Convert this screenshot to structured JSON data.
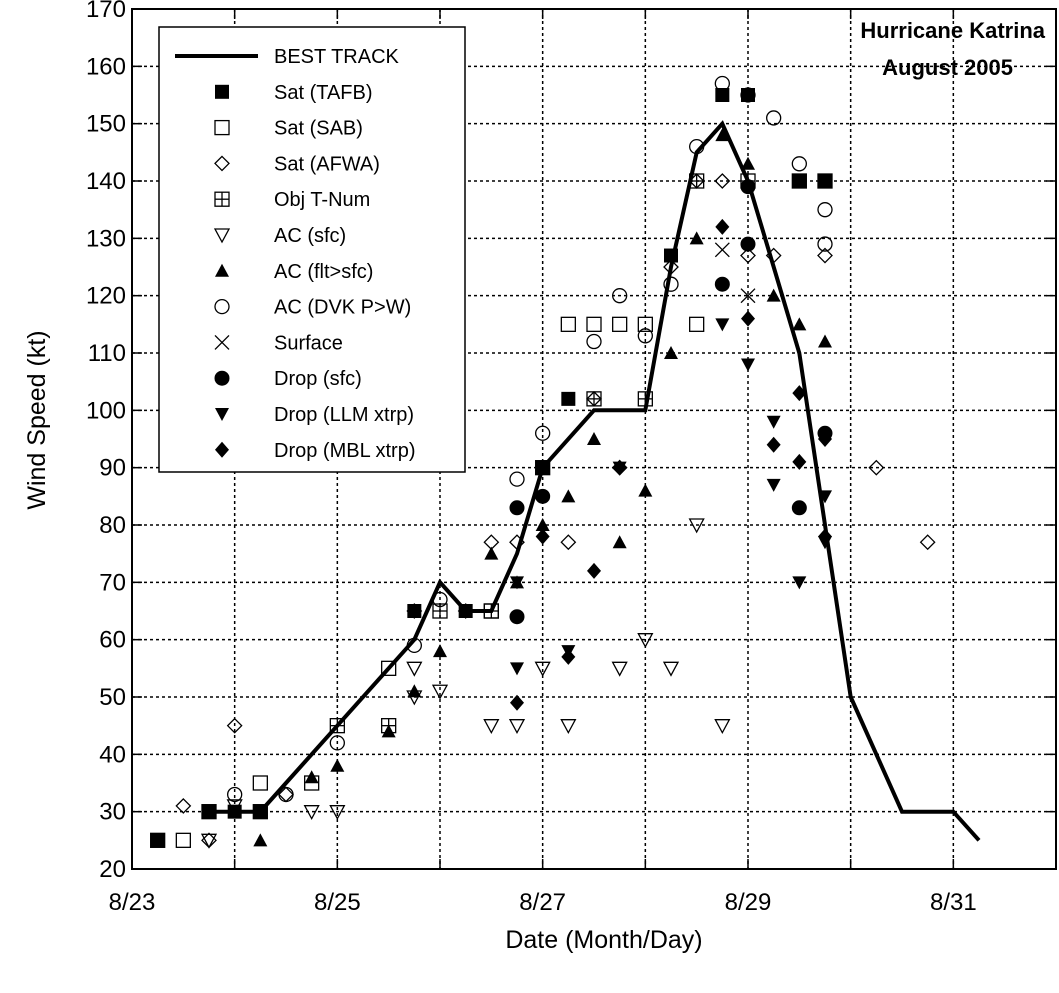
{
  "chart_data": {
    "type": "scatter",
    "title": [
      "Hurricane Katrina",
      "August 2005"
    ],
    "xlabel": "Date (Month/Day)",
    "ylabel": "Wind Speed (kt)",
    "xlim": [
      "8/23 00:00",
      "8/31 24:00"
    ],
    "ylim": [
      20,
      170
    ],
    "x_ticks": [
      "8/23",
      "8/25",
      "8/27",
      "8/29",
      "8/31"
    ],
    "y_ticks": [
      20,
      30,
      40,
      50,
      60,
      70,
      80,
      90,
      100,
      110,
      120,
      130,
      140,
      150,
      160,
      170
    ],
    "grid": true,
    "legend_position": "top-left",
    "series": [
      {
        "name": "BEST TRACK",
        "marker": "line",
        "points": [
          [
            "8/23 18:00",
            30
          ],
          [
            "8/24 06:00",
            30
          ],
          [
            "8/24 12:00",
            35
          ],
          [
            "8/25 00:00",
            45
          ],
          [
            "8/25 12:00",
            55
          ],
          [
            "8/25 18:00",
            60
          ],
          [
            "8/26 00:00",
            70
          ],
          [
            "8/26 06:00",
            65
          ],
          [
            "8/26 12:00",
            65
          ],
          [
            "8/26 18:00",
            75
          ],
          [
            "8/27 00:00",
            90
          ],
          [
            "8/27 12:00",
            100
          ],
          [
            "8/27 18:00",
            100
          ],
          [
            "8/28 00:00",
            100
          ],
          [
            "8/28 06:00",
            125
          ],
          [
            "8/28 12:00",
            145
          ],
          [
            "8/28 18:00",
            150
          ],
          [
            "8/29 00:00",
            140
          ],
          [
            "8/29 06:00",
            125
          ],
          [
            "8/29 12:00",
            110
          ],
          [
            "8/30 00:00",
            50
          ],
          [
            "8/30 12:00",
            30
          ],
          [
            "8/31 00:00",
            30
          ],
          [
            "8/31 06:00",
            25
          ]
        ]
      },
      {
        "name": "Sat (TAFB)",
        "marker": "square-filled",
        "points": [
          [
            "8/23 06:00",
            25
          ],
          [
            "8/23 18:00",
            30
          ],
          [
            "8/24 00:00",
            30
          ],
          [
            "8/24 06:00",
            30
          ],
          [
            "8/25 18:00",
            65
          ],
          [
            "8/26 06:00",
            65
          ],
          [
            "8/27 00:00",
            90
          ],
          [
            "8/27 06:00",
            102
          ],
          [
            "8/28 06:00",
            127
          ],
          [
            "8/28 18:00",
            155
          ],
          [
            "8/29 00:00",
            155
          ],
          [
            "8/29 12:00",
            140
          ],
          [
            "8/29 18:00",
            140
          ]
        ]
      },
      {
        "name": "Sat (SAB)",
        "marker": "square-open",
        "points": [
          [
            "8/23 06:00",
            25
          ],
          [
            "8/23 12:00",
            25
          ],
          [
            "8/24 06:00",
            35
          ],
          [
            "8/24 18:00",
            35
          ],
          [
            "8/25 12:00",
            55
          ],
          [
            "8/26 12:00",
            65
          ],
          [
            "8/27 06:00",
            115
          ],
          [
            "8/27 12:00",
            115
          ],
          [
            "8/27 18:00",
            115
          ],
          [
            "8/28 00:00",
            115
          ],
          [
            "8/28 12:00",
            115
          ]
        ]
      },
      {
        "name": "Sat (AFWA)",
        "marker": "diamond-open",
        "points": [
          [
            "8/23 12:00",
            31
          ],
          [
            "8/23 18:00",
            25
          ],
          [
            "8/24 00:00",
            45
          ],
          [
            "8/24 12:00",
            33
          ],
          [
            "8/25 18:00",
            65
          ],
          [
            "8/26 06:00",
            65
          ],
          [
            "8/26 12:00",
            77
          ],
          [
            "8/26 18:00",
            77
          ],
          [
            "8/27 06:00",
            77
          ],
          [
            "8/27 12:00",
            102
          ],
          [
            "8/27 18:00",
            90
          ],
          [
            "8/28 06:00",
            125
          ],
          [
            "8/28 12:00",
            140
          ],
          [
            "8/28 18:00",
            140
          ],
          [
            "8/29 00:00",
            127
          ],
          [
            "8/29 06:00",
            127
          ],
          [
            "8/29 18:00",
            127
          ],
          [
            "8/30 06:00",
            90
          ],
          [
            "8/30 18:00",
            77
          ]
        ]
      },
      {
        "name": "Obj T-Num",
        "marker": "square-plus",
        "points": [
          [
            "8/23 18:00",
            30
          ],
          [
            "8/24 06:00",
            30
          ],
          [
            "8/25 00:00",
            45
          ],
          [
            "8/25 12:00",
            45
          ],
          [
            "8/26 00:00",
            65
          ],
          [
            "8/26 12:00",
            65
          ],
          [
            "8/27 00:00",
            90
          ],
          [
            "8/27 12:00",
            102
          ],
          [
            "8/28 00:00",
            102
          ],
          [
            "8/28 12:00",
            140
          ],
          [
            "8/29 00:00",
            140
          ],
          [
            "8/29 12:00",
            140
          ],
          [
            "8/29 18:00",
            140
          ]
        ]
      },
      {
        "name": "AC (sfc)",
        "marker": "triangle-down-open",
        "points": [
          [
            "8/23 18:00",
            25
          ],
          [
            "8/24 00:00",
            31
          ],
          [
            "8/24 18:00",
            30
          ],
          [
            "8/25 00:00",
            30
          ],
          [
            "8/25 18:00",
            55
          ],
          [
            "8/25 18:00",
            50
          ],
          [
            "8/26 00:00",
            51
          ],
          [
            "8/26 12:00",
            45
          ],
          [
            "8/26 18:00",
            45
          ],
          [
            "8/27 00:00",
            55
          ],
          [
            "8/27 06:00",
            45
          ],
          [
            "8/27 18:00",
            55
          ],
          [
            "8/28 00:00",
            60
          ],
          [
            "8/28 06:00",
            55
          ],
          [
            "8/28 12:00",
            80
          ],
          [
            "8/28 18:00",
            45
          ]
        ]
      },
      {
        "name": "AC (flt>sfc)",
        "marker": "triangle-up-filled",
        "points": [
          [
            "8/24 06:00",
            25
          ],
          [
            "8/24 18:00",
            36
          ],
          [
            "8/25 00:00",
            38
          ],
          [
            "8/25 12:00",
            44
          ],
          [
            "8/25 18:00",
            51
          ],
          [
            "8/26 00:00",
            58
          ],
          [
            "8/26 12:00",
            75
          ],
          [
            "8/26 18:00",
            70
          ],
          [
            "8/27 00:00",
            80
          ],
          [
            "8/27 06:00",
            85
          ],
          [
            "8/27 12:00",
            95
          ],
          [
            "8/27 18:00",
            77
          ],
          [
            "8/28 00:00",
            86
          ],
          [
            "8/28 06:00",
            110
          ],
          [
            "8/28 12:00",
            130
          ],
          [
            "8/28 18:00",
            148
          ],
          [
            "8/29 00:00",
            143
          ],
          [
            "8/29 06:00",
            120
          ],
          [
            "8/29 12:00",
            115
          ],
          [
            "8/29 18:00",
            112
          ]
        ]
      },
      {
        "name": "AC (DVK P>W)",
        "marker": "circle-open",
        "points": [
          [
            "8/24 00:00",
            33
          ],
          [
            "8/24 12:00",
            33
          ],
          [
            "8/25 00:00",
            42
          ],
          [
            "8/25 18:00",
            59
          ],
          [
            "8/26 00:00",
            67
          ],
          [
            "8/26 18:00",
            88
          ],
          [
            "8/27 00:00",
            96
          ],
          [
            "8/27 12:00",
            112
          ],
          [
            "8/27 18:00",
            120
          ],
          [
            "8/28 00:00",
            113
          ],
          [
            "8/28 06:00",
            122
          ],
          [
            "8/28 12:00",
            146
          ],
          [
            "8/28 18:00",
            157
          ],
          [
            "8/29 00:00",
            155
          ],
          [
            "8/29 06:00",
            151
          ],
          [
            "8/29 12:00",
            143
          ],
          [
            "8/29 18:00",
            135
          ],
          [
            "8/29 18:00",
            129
          ]
        ]
      },
      {
        "name": "Surface",
        "marker": "x",
        "points": [
          [
            "8/28 18:00",
            128
          ],
          [
            "8/29 00:00",
            120
          ]
        ]
      },
      {
        "name": "Drop (sfc)",
        "marker": "circle-filled",
        "points": [
          [
            "8/26 18:00",
            83
          ],
          [
            "8/26 18:00",
            64
          ],
          [
            "8/27 00:00",
            85
          ],
          [
            "8/28 18:00",
            122
          ],
          [
            "8/29 00:00",
            139
          ],
          [
            "8/29 00:00",
            129
          ],
          [
            "8/29 12:00",
            83
          ],
          [
            "8/29 18:00",
            96
          ]
        ]
      },
      {
        "name": "Drop (LLM xtrp)",
        "marker": "triangle-down-filled",
        "points": [
          [
            "8/26 18:00",
            55
          ],
          [
            "8/26 18:00",
            70
          ],
          [
            "8/27 06:00",
            58
          ],
          [
            "8/27 18:00",
            90
          ],
          [
            "8/28 18:00",
            115
          ],
          [
            "8/29 00:00",
            108
          ],
          [
            "8/29 06:00",
            87
          ],
          [
            "8/29 06:00",
            98
          ],
          [
            "8/29 12:00",
            70
          ],
          [
            "8/29 18:00",
            85
          ],
          [
            "8/29 18:00",
            77
          ]
        ]
      },
      {
        "name": "Drop (MBL xtrp)",
        "marker": "diamond-filled",
        "points": [
          [
            "8/26 18:00",
            49
          ],
          [
            "8/27 00:00",
            78
          ],
          [
            "8/27 06:00",
            57
          ],
          [
            "8/27 12:00",
            72
          ],
          [
            "8/27 18:00",
            90
          ],
          [
            "8/28 18:00",
            132
          ],
          [
            "8/29 00:00",
            116
          ],
          [
            "8/29 06:00",
            94
          ],
          [
            "8/29 12:00",
            91
          ],
          [
            "8/29 12:00",
            103
          ],
          [
            "8/29 18:00",
            95
          ],
          [
            "8/29 18:00",
            78
          ]
        ]
      }
    ]
  }
}
